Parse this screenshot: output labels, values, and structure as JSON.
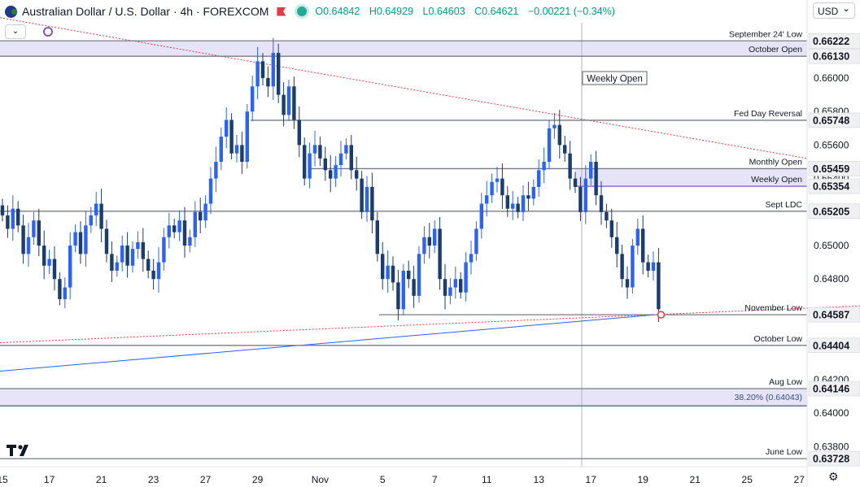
{
  "header": {
    "title": "Australian Dollar / U.S. Dollar · 4h · FOREXCOM",
    "open": "O0.64842",
    "high": "H0.64929",
    "low": "L0.64603",
    "close": "C0.64621",
    "change": "−0.00221 (−0.34%)",
    "currency": "USD"
  },
  "icons": {
    "flag": "aud-usd-flag-icon",
    "flag_marker": "red-flag-icon",
    "status": "market-open-dot-icon",
    "collapse": "chevron-down-icon",
    "settings": "gear-icon",
    "logo": "tradingview-logo-icon",
    "alert": "alert-clock-icon"
  },
  "chart_data": {
    "type": "candlestick",
    "symbol": "AUD/USD",
    "timeframe": "4h",
    "ylim": [
      0.6368,
      0.6633
    ],
    "y_ticks": [
      0.638,
      0.64,
      0.642,
      0.644,
      0.646,
      0.648,
      0.65,
      0.652,
      0.654,
      0.656,
      0.658,
      0.66,
      0.662
    ],
    "y_tick_labels": [
      "0.63800",
      "0.64000",
      "0.64200",
      "0.64400",
      "0.64600",
      "0.64800",
      "0.65000",
      "0.65200",
      "0.65400",
      "0.65600",
      "0.65800",
      "0.66000",
      "0.66200"
    ],
    "x_labels": [
      "15",
      "17",
      "21",
      "23",
      "27",
      "29",
      "Nov",
      "5",
      "7",
      "11",
      "13",
      "17",
      "19",
      "21",
      "25",
      "27"
    ],
    "x_label_bar_index": [
      0,
      9,
      19,
      29,
      39,
      49,
      61,
      73,
      83,
      93,
      103,
      113,
      123,
      133,
      143,
      153
    ],
    "bar_count": 127,
    "closes": [
      0.6518,
      0.651,
      0.6522,
      0.6512,
      0.6495,
      0.6505,
      0.6515,
      0.65,
      0.6488,
      0.6492,
      0.648,
      0.6468,
      0.6475,
      0.65,
      0.6508,
      0.6495,
      0.6512,
      0.6518,
      0.6525,
      0.651,
      0.6495,
      0.6485,
      0.649,
      0.65,
      0.6488,
      0.6498,
      0.6502,
      0.6492,
      0.6485,
      0.648,
      0.649,
      0.6505,
      0.6512,
      0.6508,
      0.6515,
      0.65,
      0.6505,
      0.652,
      0.6515,
      0.6525,
      0.654,
      0.655,
      0.6565,
      0.6575,
      0.6555,
      0.656,
      0.655,
      0.658,
      0.6595,
      0.661,
      0.66,
      0.6595,
      0.6615,
      0.659,
      0.6578,
      0.6595,
      0.6575,
      0.656,
      0.654,
      0.6555,
      0.656,
      0.6552,
      0.6545,
      0.654,
      0.6548,
      0.6555,
      0.656,
      0.6545,
      0.654,
      0.652,
      0.6535,
      0.6515,
      0.6495,
      0.648,
      0.6488,
      0.6478,
      0.6462,
      0.6485,
      0.648,
      0.647,
      0.6495,
      0.6505,
      0.65,
      0.651,
      0.648,
      0.647,
      0.6475,
      0.648,
      0.6472,
      0.649,
      0.6495,
      0.651,
      0.6525,
      0.653,
      0.6538,
      0.654,
      0.653,
      0.6522,
      0.6525,
      0.652,
      0.653,
      0.6528,
      0.6535,
      0.6545,
      0.655,
      0.657,
      0.6572,
      0.656,
      0.6555,
      0.654,
      0.6535,
      0.652,
      0.654,
      0.655,
      0.653,
      0.652,
      0.6515,
      0.6505,
      0.6495,
      0.648,
      0.6475,
      0.65,
      0.651,
      0.649,
      0.6485,
      0.649,
      0.6462
    ],
    "horizontal_levels": [
      {
        "label": "September 24' Low",
        "value": 0.66222
      },
      {
        "label": "October Open",
        "value": 0.6613
      },
      {
        "label": "Fed Day Reversal",
        "value": 0.65748
      },
      {
        "label": "Monthly Open",
        "value": 0.65459
      },
      {
        "label": "Weekly Open",
        "value": 0.65354
      },
      {
        "label": "Sept LDC",
        "value": 0.65205
      },
      {
        "label": "November Low",
        "value": 0.64587
      },
      {
        "label": "October Low",
        "value": 0.64404
      },
      {
        "label": "Aug Low",
        "value": 0.64146
      },
      {
        "label": "38.20% (0.64043)",
        "value": 0.64043
      },
      {
        "label": "June Low",
        "value": 0.63728
      }
    ],
    "price_tags": [
      "0.66222",
      "0.66130",
      "0.65748",
      "0.65459",
      "0.65354",
      "0.65205",
      "0.64587",
      "0.64404",
      "0.64146",
      "0.63728"
    ],
    "annotation_box": "Weekly Open",
    "colors": {
      "up": "#2962ff",
      "down": "#1a3c6e",
      "level_line": "#787b86",
      "zone_fill": "#e8e4f7",
      "resistance_trend": "#e53945",
      "support_trend": "#2962ff",
      "tag_bg": "#f0f0f3"
    }
  }
}
